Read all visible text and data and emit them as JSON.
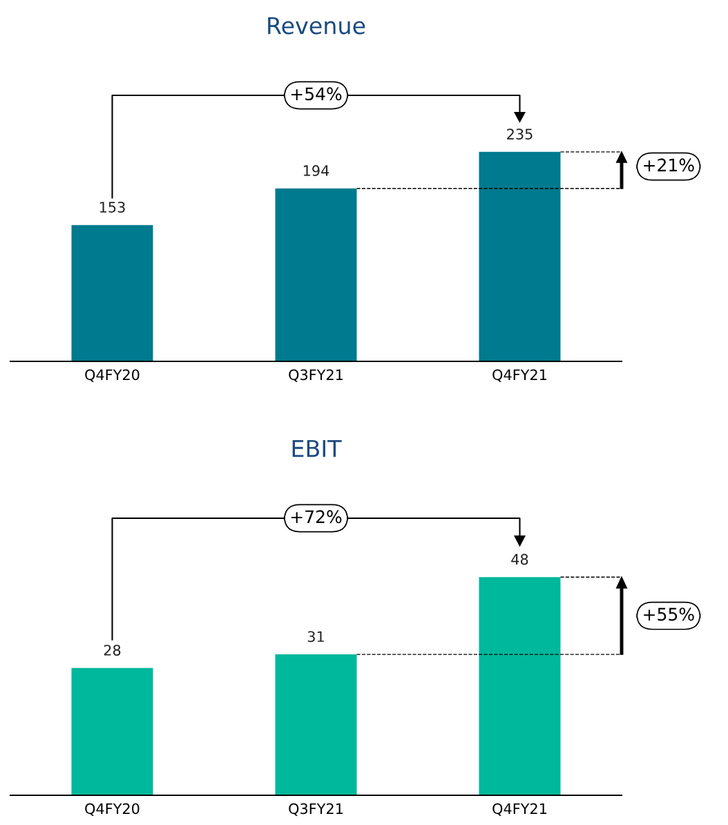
{
  "chart_data": [
    {
      "type": "bar",
      "title": "Revenue",
      "categories": [
        "Q4FY20",
        "Q3FY21",
        "Q4FY21"
      ],
      "values": [
        153,
        194,
        235
      ],
      "color": "#007a8e",
      "data_labels": true,
      "tick_labels": "x",
      "annotations": [
        "+54%",
        "+21%"
      ],
      "ref_lines": [
        {
          "axis": "y",
          "value": 194,
          "line_style": "dashed",
          "color": "#000000"
        },
        {
          "axis": "y",
          "value": 235,
          "line_style": "dashed",
          "color": "#000000"
        }
      ]
    },
    {
      "type": "bar",
      "title": "EBIT",
      "categories": [
        "Q4FY20",
        "Q3FY21",
        "Q4FY21"
      ],
      "values": [
        28,
        31,
        48
      ],
      "color": "#00b89b",
      "data_labels": true,
      "tick_labels": "x",
      "annotations": [
        "+72%",
        "+55%"
      ],
      "ref_lines": [
        {
          "axis": "y",
          "value": 31,
          "line_style": "dashed",
          "color": "#000000"
        },
        {
          "axis": "y",
          "value": 48,
          "line_style": "dashed",
          "color": "#000000"
        }
      ]
    }
  ]
}
